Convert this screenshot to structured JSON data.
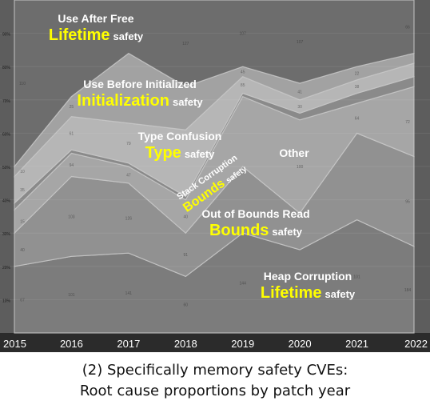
{
  "chart_data": {
    "type": "area",
    "stacked": true,
    "normalized": true,
    "x": [
      "2015",
      "2016",
      "2017",
      "2018",
      "2019",
      "2020",
      "2021",
      "2022"
    ],
    "ylim": [
      0,
      100
    ],
    "y_ticks": [
      "10%",
      "20%",
      "30%",
      "40%",
      "50%",
      "60%",
      "70%",
      "80%",
      "90%"
    ],
    "grid": true,
    "legend": "none",
    "series": [
      {
        "name": "Heap Corruption",
        "values": [
          20,
          23,
          24,
          17,
          30,
          25,
          34,
          26
        ],
        "color": "#7c7c7c",
        "point_labels": [
          "67",
          "101",
          "141",
          "60",
          "144",
          "",
          "101",
          "184"
        ]
      },
      {
        "name": "Out of Bounds Read",
        "values": [
          10,
          24,
          21,
          13,
          20,
          11,
          26,
          27
        ],
        "color": "#919191",
        "point_labels": [
          "40",
          "103",
          "126",
          "91",
          "",
          "",
          "",
          "95"
        ]
      },
      {
        "name": "Other",
        "values": [
          7,
          7,
          5,
          10,
          21,
          28,
          9,
          21
        ],
        "color": "#a6a6a6",
        "point_labels": [
          "15",
          "94",
          "47",
          "40",
          "",
          "100",
          "64",
          "72"
        ]
      },
      {
        "name": "Stack Corruption",
        "values": [
          2,
          1,
          1,
          1,
          1,
          2,
          3,
          3
        ],
        "color": "#8a8a8a",
        "point_labels": [
          "",
          "",
          "",
          "",
          "",
          "",
          "",
          ""
        ]
      },
      {
        "name": "Type Confusion",
        "values": [
          8,
          10,
          12,
          20,
          5,
          4,
          4,
          4
        ],
        "color": "#b6b6b6",
        "point_labels": [
          "35",
          "61",
          "79",
          "",
          "85",
          "30",
          "38",
          ""
        ]
      },
      {
        "name": "Use Before Initialized",
        "values": [
          3,
          6,
          21,
          13,
          3,
          5,
          4,
          3
        ],
        "color": "#a2a2a2",
        "point_labels": [
          "10",
          "25",
          "",
          "",
          "45",
          "41",
          "22",
          ""
        ]
      },
      {
        "name": "Use After Free",
        "values": [
          50,
          29,
          16,
          26,
          20,
          25,
          20,
          16
        ],
        "color": "#6d6d6d",
        "point_labels": [
          "110",
          "",
          "",
          "127",
          "107",
          "107",
          "",
          "66"
        ]
      }
    ],
    "annotations": [
      {
        "lines": [
          "Use After Free"
        ],
        "emphasis": "Lifetime",
        "suffix": "safety"
      },
      {
        "lines": [
          "Use Before Initialized"
        ],
        "emphasis": "Initialization",
        "suffix": "safety"
      },
      {
        "lines": [
          "Type Confusion"
        ],
        "emphasis": "Type",
        "suffix": "safety"
      },
      {
        "lines": [
          "Stack Corruption"
        ],
        "emphasis": "Bounds",
        "suffix": "safety"
      },
      {
        "lines": [
          "Other"
        ],
        "emphasis": "",
        "suffix": ""
      },
      {
        "lines": [
          "Out of Bounds Read"
        ],
        "emphasis": "Bounds",
        "suffix": "safety"
      },
      {
        "lines": [
          "Heap Corruption"
        ],
        "emphasis": "Lifetime",
        "suffix": "safety"
      }
    ],
    "colors": {
      "plot_bg": "#5d5d5d",
      "axis_band": "#2b2b2b",
      "tick_text": "#ffffff",
      "emphasis": "#ffff00",
      "label_text": "#ffffff"
    }
  },
  "caption": {
    "line1": "(2) Specifically memory safety CVEs:",
    "line2": "Root cause proportions by patch year"
  }
}
